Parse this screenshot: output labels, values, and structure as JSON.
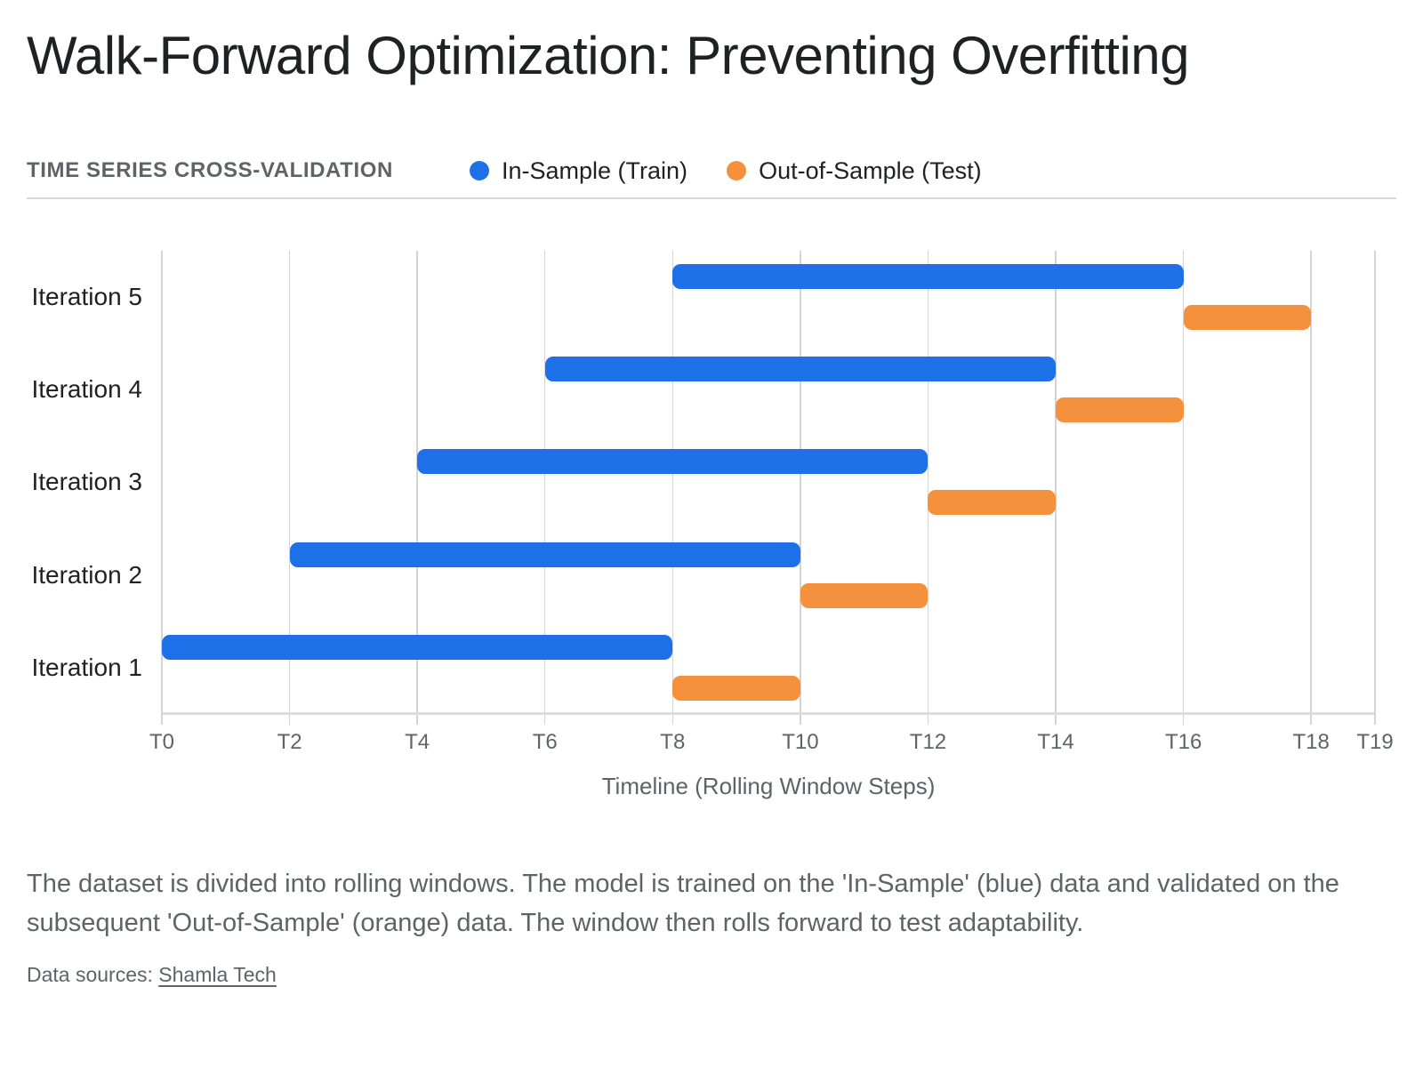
{
  "title": "Walk-Forward Optimization: Preventing Overfitting",
  "kicker": "TIME SERIES CROSS-VALIDATION",
  "legend": {
    "items": [
      {
        "label": "In-Sample (Train)",
        "color": "#1d70e8"
      },
      {
        "label": "Out-of-Sample (Test)",
        "color": "#f5913c"
      }
    ]
  },
  "chart_data": {
    "type": "bar",
    "orientation": "horizontal-gantt",
    "categories": [
      "Iteration 5",
      "Iteration 4",
      "Iteration 3",
      "Iteration 2",
      "Iteration 1"
    ],
    "series": [
      {
        "name": "In-Sample (Train)",
        "color": "#1d70e8",
        "spans": [
          [
            8,
            16
          ],
          [
            6,
            14
          ],
          [
            4,
            12
          ],
          [
            2,
            10
          ],
          [
            0,
            8
          ]
        ]
      },
      {
        "name": "Out-of-Sample (Test)",
        "color": "#f5913c",
        "spans": [
          [
            16,
            18
          ],
          [
            14,
            16
          ],
          [
            12,
            14
          ],
          [
            10,
            12
          ],
          [
            8,
            10
          ]
        ]
      }
    ],
    "xlabel": "Timeline (Rolling Window Steps)",
    "xlim": [
      0,
      19
    ],
    "xticks": [
      0,
      2,
      4,
      6,
      8,
      10,
      12,
      14,
      16,
      18,
      19
    ],
    "xtick_labels": [
      "T0",
      "T2",
      "T4",
      "T6",
      "T8",
      "T10",
      "T12",
      "T14",
      "T16",
      "T18",
      "T19"
    ],
    "grid": "vertical"
  },
  "caption": {
    "lines": [
      "The dataset is divided into rolling windows. The model is trained on the 'In-Sample' (blue) data and validated on the",
      "subsequent 'Out-of-Sample' (orange) data. The window then rolls forward to test adaptability."
    ]
  },
  "footer": {
    "prefix": "Data sources: ",
    "link_label": "Shamla Tech"
  }
}
